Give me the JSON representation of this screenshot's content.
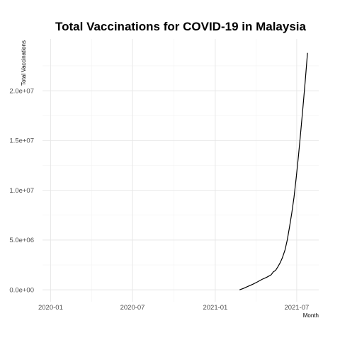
{
  "chart_data": {
    "type": "line",
    "title": "Total Vaccinations for COVID-19 in Malaysia",
    "xlabel": "Month",
    "ylabel": "Total Vaccinations",
    "x_ticks": [
      {
        "date": "2020-01-01",
        "label": "2020-01"
      },
      {
        "date": "2020-07-01",
        "label": "2020-07"
      },
      {
        "date": "2021-01-01",
        "label": "2021-01"
      },
      {
        "date": "2021-07-01",
        "label": "2021-07"
      }
    ],
    "y_ticks": [
      {
        "value": 0,
        "label": "0.0e+00"
      },
      {
        "value": 5000000,
        "label": "5.0e+06"
      },
      {
        "value": 10000000,
        "label": "1.0e+07"
      },
      {
        "value": 15000000,
        "label": "1.5e+07"
      },
      {
        "value": 20000000,
        "label": "2.0e+07"
      }
    ],
    "xlim": [
      "2019-12-14",
      "2021-08-19"
    ],
    "ylim": [
      -1200000,
      25200000
    ],
    "grid": true,
    "series": [
      {
        "color": "#000000",
        "points": [
          {
            "x": "2021-02-24",
            "y": 0
          },
          {
            "x": "2021-03-05",
            "y": 150000
          },
          {
            "x": "2021-03-15",
            "y": 350000
          },
          {
            "x": "2021-03-25",
            "y": 550000
          },
          {
            "x": "2021-04-05",
            "y": 800000
          },
          {
            "x": "2021-04-15",
            "y": 1050000
          },
          {
            "x": "2021-04-25",
            "y": 1250000
          },
          {
            "x": "2021-05-05",
            "y": 1500000
          },
          {
            "x": "2021-05-10",
            "y": 1800000
          },
          {
            "x": "2021-05-15",
            "y": 1950000
          },
          {
            "x": "2021-05-20",
            "y": 2300000
          },
          {
            "x": "2021-05-25",
            "y": 2700000
          },
          {
            "x": "2021-05-30",
            "y": 3200000
          },
          {
            "x": "2021-06-05",
            "y": 4000000
          },
          {
            "x": "2021-06-10",
            "y": 5000000
          },
          {
            "x": "2021-06-15",
            "y": 6300000
          },
          {
            "x": "2021-06-20",
            "y": 7700000
          },
          {
            "x": "2021-06-25",
            "y": 9300000
          },
          {
            "x": "2021-06-30",
            "y": 11300000
          },
          {
            "x": "2021-07-05",
            "y": 13500000
          },
          {
            "x": "2021-07-10",
            "y": 15900000
          },
          {
            "x": "2021-07-15",
            "y": 18400000
          },
          {
            "x": "2021-07-20",
            "y": 21000000
          },
          {
            "x": "2021-07-25",
            "y": 23800000
          }
        ]
      }
    ]
  }
}
